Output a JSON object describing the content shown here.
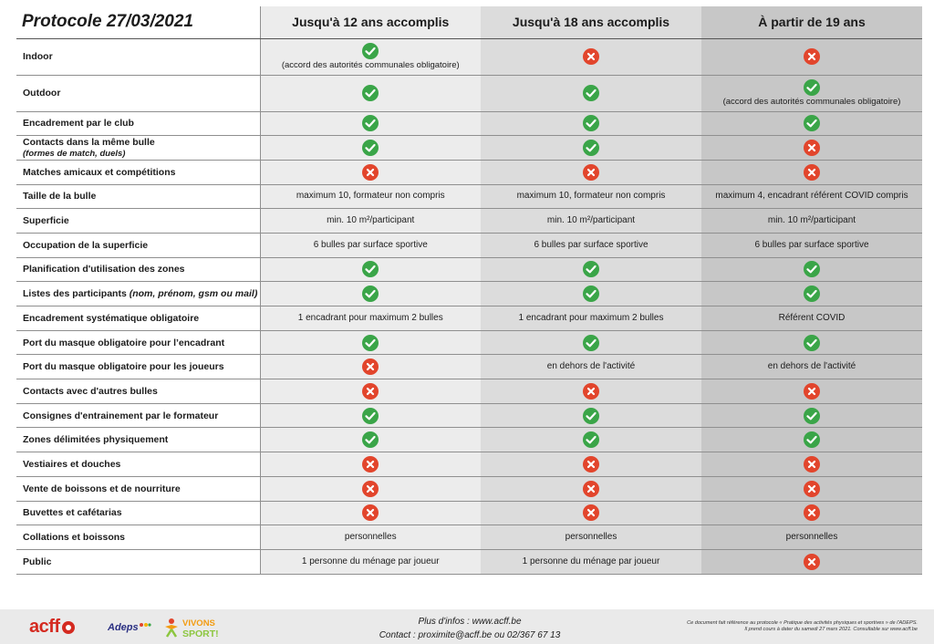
{
  "table": {
    "title": "Protocole 27/03/2021",
    "columns": [
      "Jusqu'à 12 ans accomplis",
      "Jusqu'à 18 ans accomplis",
      "À partir de 19 ans"
    ],
    "rows": [
      {
        "label": "Indoor",
        "sub": "",
        "tall": true,
        "cells": [
          {
            "icon": "yes",
            "note": "(accord des autorités communales obligatoire)"
          },
          {
            "icon": "no"
          },
          {
            "icon": "no"
          }
        ]
      },
      {
        "label": "Outdoor",
        "sub": "",
        "tall": true,
        "cells": [
          {
            "icon": "yes"
          },
          {
            "icon": "yes"
          },
          {
            "icon": "yes",
            "note": "(accord des autorités communales obligatoire)"
          }
        ]
      },
      {
        "label": "Encadrement par le club",
        "sub": "",
        "cells": [
          {
            "icon": "yes"
          },
          {
            "icon": "yes"
          },
          {
            "icon": "yes"
          }
        ]
      },
      {
        "label": "Contacts dans la même bulle",
        "sub": "(formes de match, duels)",
        "cells": [
          {
            "icon": "yes"
          },
          {
            "icon": "yes"
          },
          {
            "icon": "no"
          }
        ]
      },
      {
        "label": "Matches amicaux et compétitions",
        "sub": "",
        "cells": [
          {
            "icon": "no"
          },
          {
            "icon": "no"
          },
          {
            "icon": "no"
          }
        ]
      },
      {
        "label": "Taille de la bulle",
        "sub": "",
        "cells": [
          {
            "text": "maximum 10, formateur non compris"
          },
          {
            "text": "maximum 10, formateur non compris"
          },
          {
            "text": "maximum 4, encadrant référent COVID compris"
          }
        ]
      },
      {
        "label": "Superficie",
        "sub": "",
        "cells": [
          {
            "text": "min. 10 m²/participant"
          },
          {
            "text": "min. 10 m²/participant"
          },
          {
            "text": "min. 10 m²/participant"
          }
        ]
      },
      {
        "label": "Occupation de la superficie",
        "sub": "",
        "cells": [
          {
            "text": "6 bulles par surface sportive"
          },
          {
            "text": "6 bulles par surface sportive"
          },
          {
            "text": "6 bulles par surface sportive"
          }
        ]
      },
      {
        "label": "Planification d'utilisation des zones",
        "sub": "",
        "cells": [
          {
            "icon": "yes"
          },
          {
            "icon": "yes"
          },
          {
            "icon": "yes"
          }
        ]
      },
      {
        "label": "Listes des participants",
        "inline_sub": "(nom, prénom, gsm ou mail)",
        "cells": [
          {
            "icon": "yes"
          },
          {
            "icon": "yes"
          },
          {
            "icon": "yes"
          }
        ]
      },
      {
        "label": "Encadrement systématique obligatoire",
        "sub": "",
        "cells": [
          {
            "text": "1 encadrant pour maximum 2 bulles"
          },
          {
            "text": "1 encadrant pour maximum 2 bulles"
          },
          {
            "text": "Référent COVID"
          }
        ]
      },
      {
        "label": "Port du masque obligatoire pour l’encadrant",
        "sub": "",
        "cells": [
          {
            "icon": "yes"
          },
          {
            "icon": "yes"
          },
          {
            "icon": "yes"
          }
        ]
      },
      {
        "label": "Port du masque obligatoire pour les joueurs",
        "sub": "",
        "cells": [
          {
            "icon": "no"
          },
          {
            "text": "en dehors de l'activité"
          },
          {
            "text": "en dehors de l'activité"
          }
        ]
      },
      {
        "label": "Contacts avec d'autres bulles",
        "sub": "",
        "cells": [
          {
            "icon": "no"
          },
          {
            "icon": "no"
          },
          {
            "icon": "no"
          }
        ]
      },
      {
        "label": "Consignes d'entrainement par le formateur",
        "sub": "",
        "cells": [
          {
            "icon": "yes"
          },
          {
            "icon": "yes"
          },
          {
            "icon": "yes"
          }
        ]
      },
      {
        "label": "Zones délimitées physiquement",
        "sub": "",
        "cells": [
          {
            "icon": "yes"
          },
          {
            "icon": "yes"
          },
          {
            "icon": "yes"
          }
        ]
      },
      {
        "label": "Vestiaires et douches",
        "sub": "",
        "cells": [
          {
            "icon": "no"
          },
          {
            "icon": "no"
          },
          {
            "icon": "no"
          }
        ]
      },
      {
        "label": "Vente de boissons et de nourriture",
        "sub": "",
        "cells": [
          {
            "icon": "no"
          },
          {
            "icon": "no"
          },
          {
            "icon": "no"
          }
        ]
      },
      {
        "label": "Buvettes et cafétarias",
        "sub": "",
        "cells": [
          {
            "icon": "no"
          },
          {
            "icon": "no"
          },
          {
            "icon": "no"
          }
        ]
      },
      {
        "label": "Collations et boissons",
        "sub": "",
        "cells": [
          {
            "text": "personnelles"
          },
          {
            "text": "personnelles"
          },
          {
            "text": "personnelles"
          }
        ]
      },
      {
        "label": "Public",
        "sub": "",
        "cells": [
          {
            "text": "1 personne du ménage par joueur"
          },
          {
            "text": "1 personne du ménage par joueur"
          },
          {
            "icon": "no"
          }
        ]
      }
    ]
  },
  "footer": {
    "logo_acff": "acff",
    "logo_adeps": "Adeps",
    "logo_vivons_l1": "VIVONS",
    "logo_vivons_l2": "SPORT!",
    "contact_line1": "Plus d'infos : www.acff.be",
    "contact_line2": "Contact : proximite@acff.be ou 02/367 67 13",
    "reference_line1": "Ce document fait référence au protocole « Pratique des activités physiques et sportives » de l'ADEPS.",
    "reference_line2": "Il prend cours à dater du samedi 27 mars 2021. Consultable sur www.acff.be"
  },
  "colors": {
    "yes": "#3aa548",
    "no": "#e2452c"
  },
  "icons": {
    "yes": "check-circle-icon",
    "no": "cross-circle-icon"
  }
}
